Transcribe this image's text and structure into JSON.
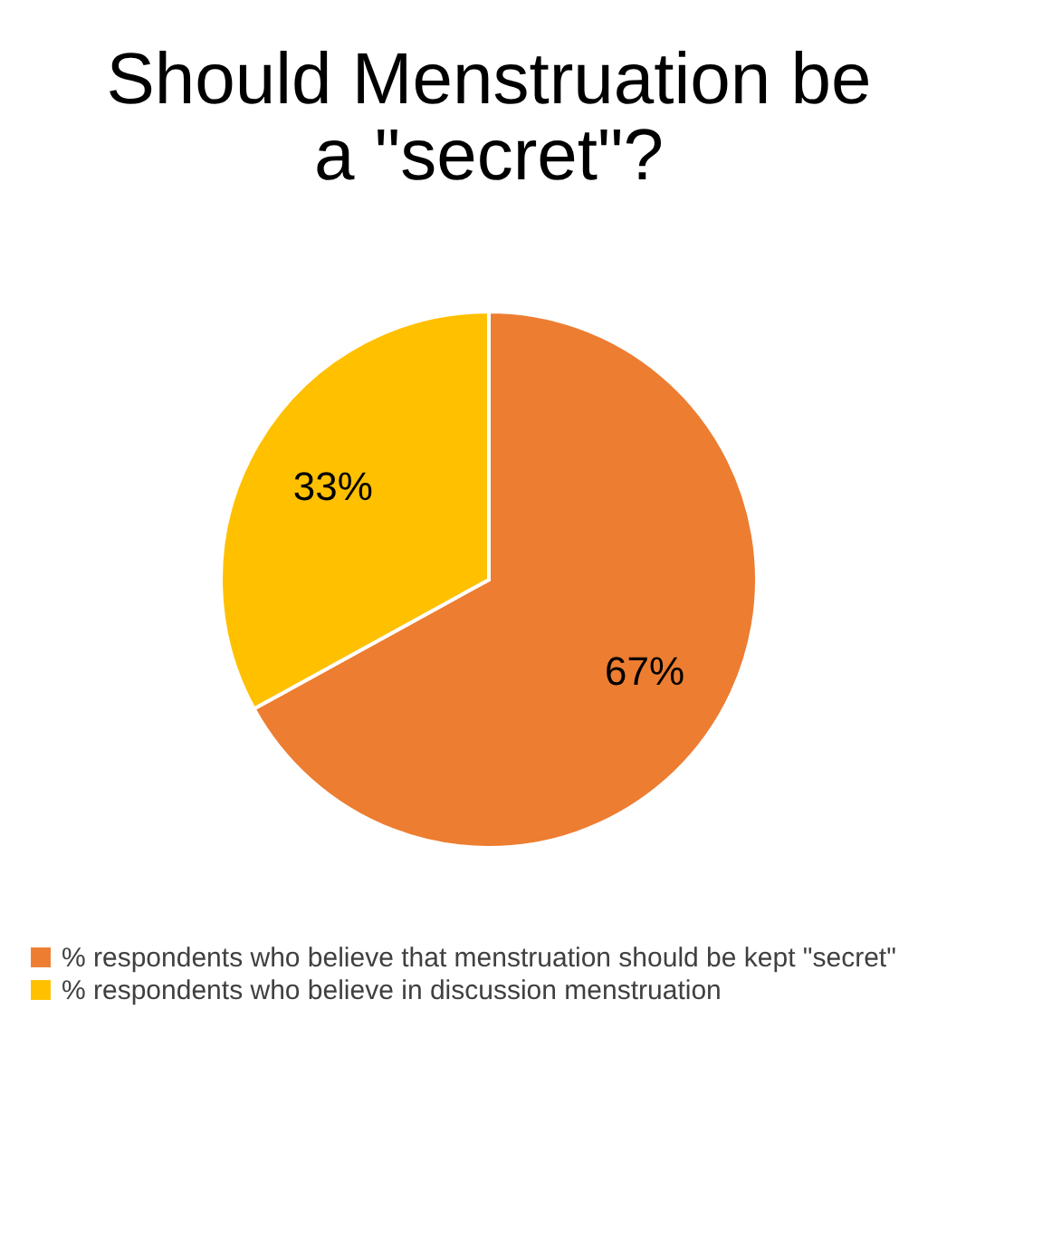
{
  "chart_data": {
    "type": "pie",
    "title": "Should Menstruation be a \"secret\"?",
    "categories": [
      "% respondents who believe that menstruation should be kept \"secret\"",
      "% respondents who believe in discussion menstruation"
    ],
    "values": [
      67,
      33
    ],
    "colors": [
      "#ed7d31",
      "#ffc000"
    ],
    "value_labels": [
      "67%",
      "33%"
    ],
    "legend": "bottom"
  }
}
